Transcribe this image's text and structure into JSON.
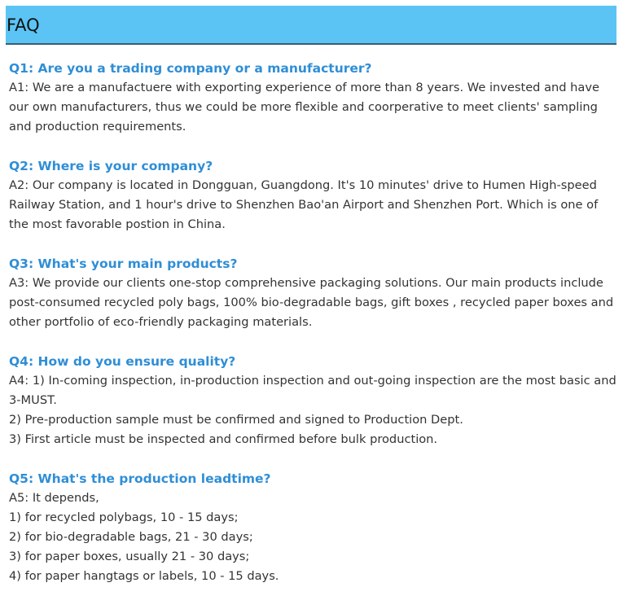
{
  "header": {
    "title": "FAQ"
  },
  "faqs": [
    {
      "question": "Q1: Are you a trading company or a manufacturer?",
      "answer": [
        "A1: We are a manufactuere with exporting experience of more than 8 years. We invested and have our own manufacturers, thus we could be more flexible and coorperative to meet clients' sampling and production requirements."
      ]
    },
    {
      "question": "Q2: Where is your company?",
      "answer": [
        "A2: Our company is located in Dongguan, Guangdong. It's 10 minutes' drive to Humen High-speed Railway Station, and 1 hour's drive to Shenzhen Bao'an Airport and Shenzhen Port. Which is one of the most favorable postion in China."
      ]
    },
    {
      "question": "Q3: What's your main products?",
      "answer": [
        "A3: We provide our clients one-stop comprehensive packaging solutions. Our main products include post-consumed recycled poly bags, 100% bio-degradable bags, gift boxes , recycled paper boxes and other portfolio of eco-friendly packaging materials."
      ]
    },
    {
      "question": "Q4: How do you ensure quality?",
      "answer": [
        "A4: 1) In-coming inspection, in-production inspection and out-going inspection are the most basic and 3-MUST.",
        "2) Pre-production sample must be confirmed and signed to Production Dept.",
        "3) First article must be inspected and confirmed before bulk production."
      ]
    },
    {
      "question": "Q5: What's the production leadtime?",
      "answer": [
        "A5: It depends,",
        "1) for recycled polybags, 10 - 15 days;",
        "2) for bio-degradable bags, 21 - 30 days;",
        "3) for paper boxes, usually 21 - 30 days;",
        "4) for paper hangtags or labels, 10 - 15 days."
      ]
    }
  ]
}
